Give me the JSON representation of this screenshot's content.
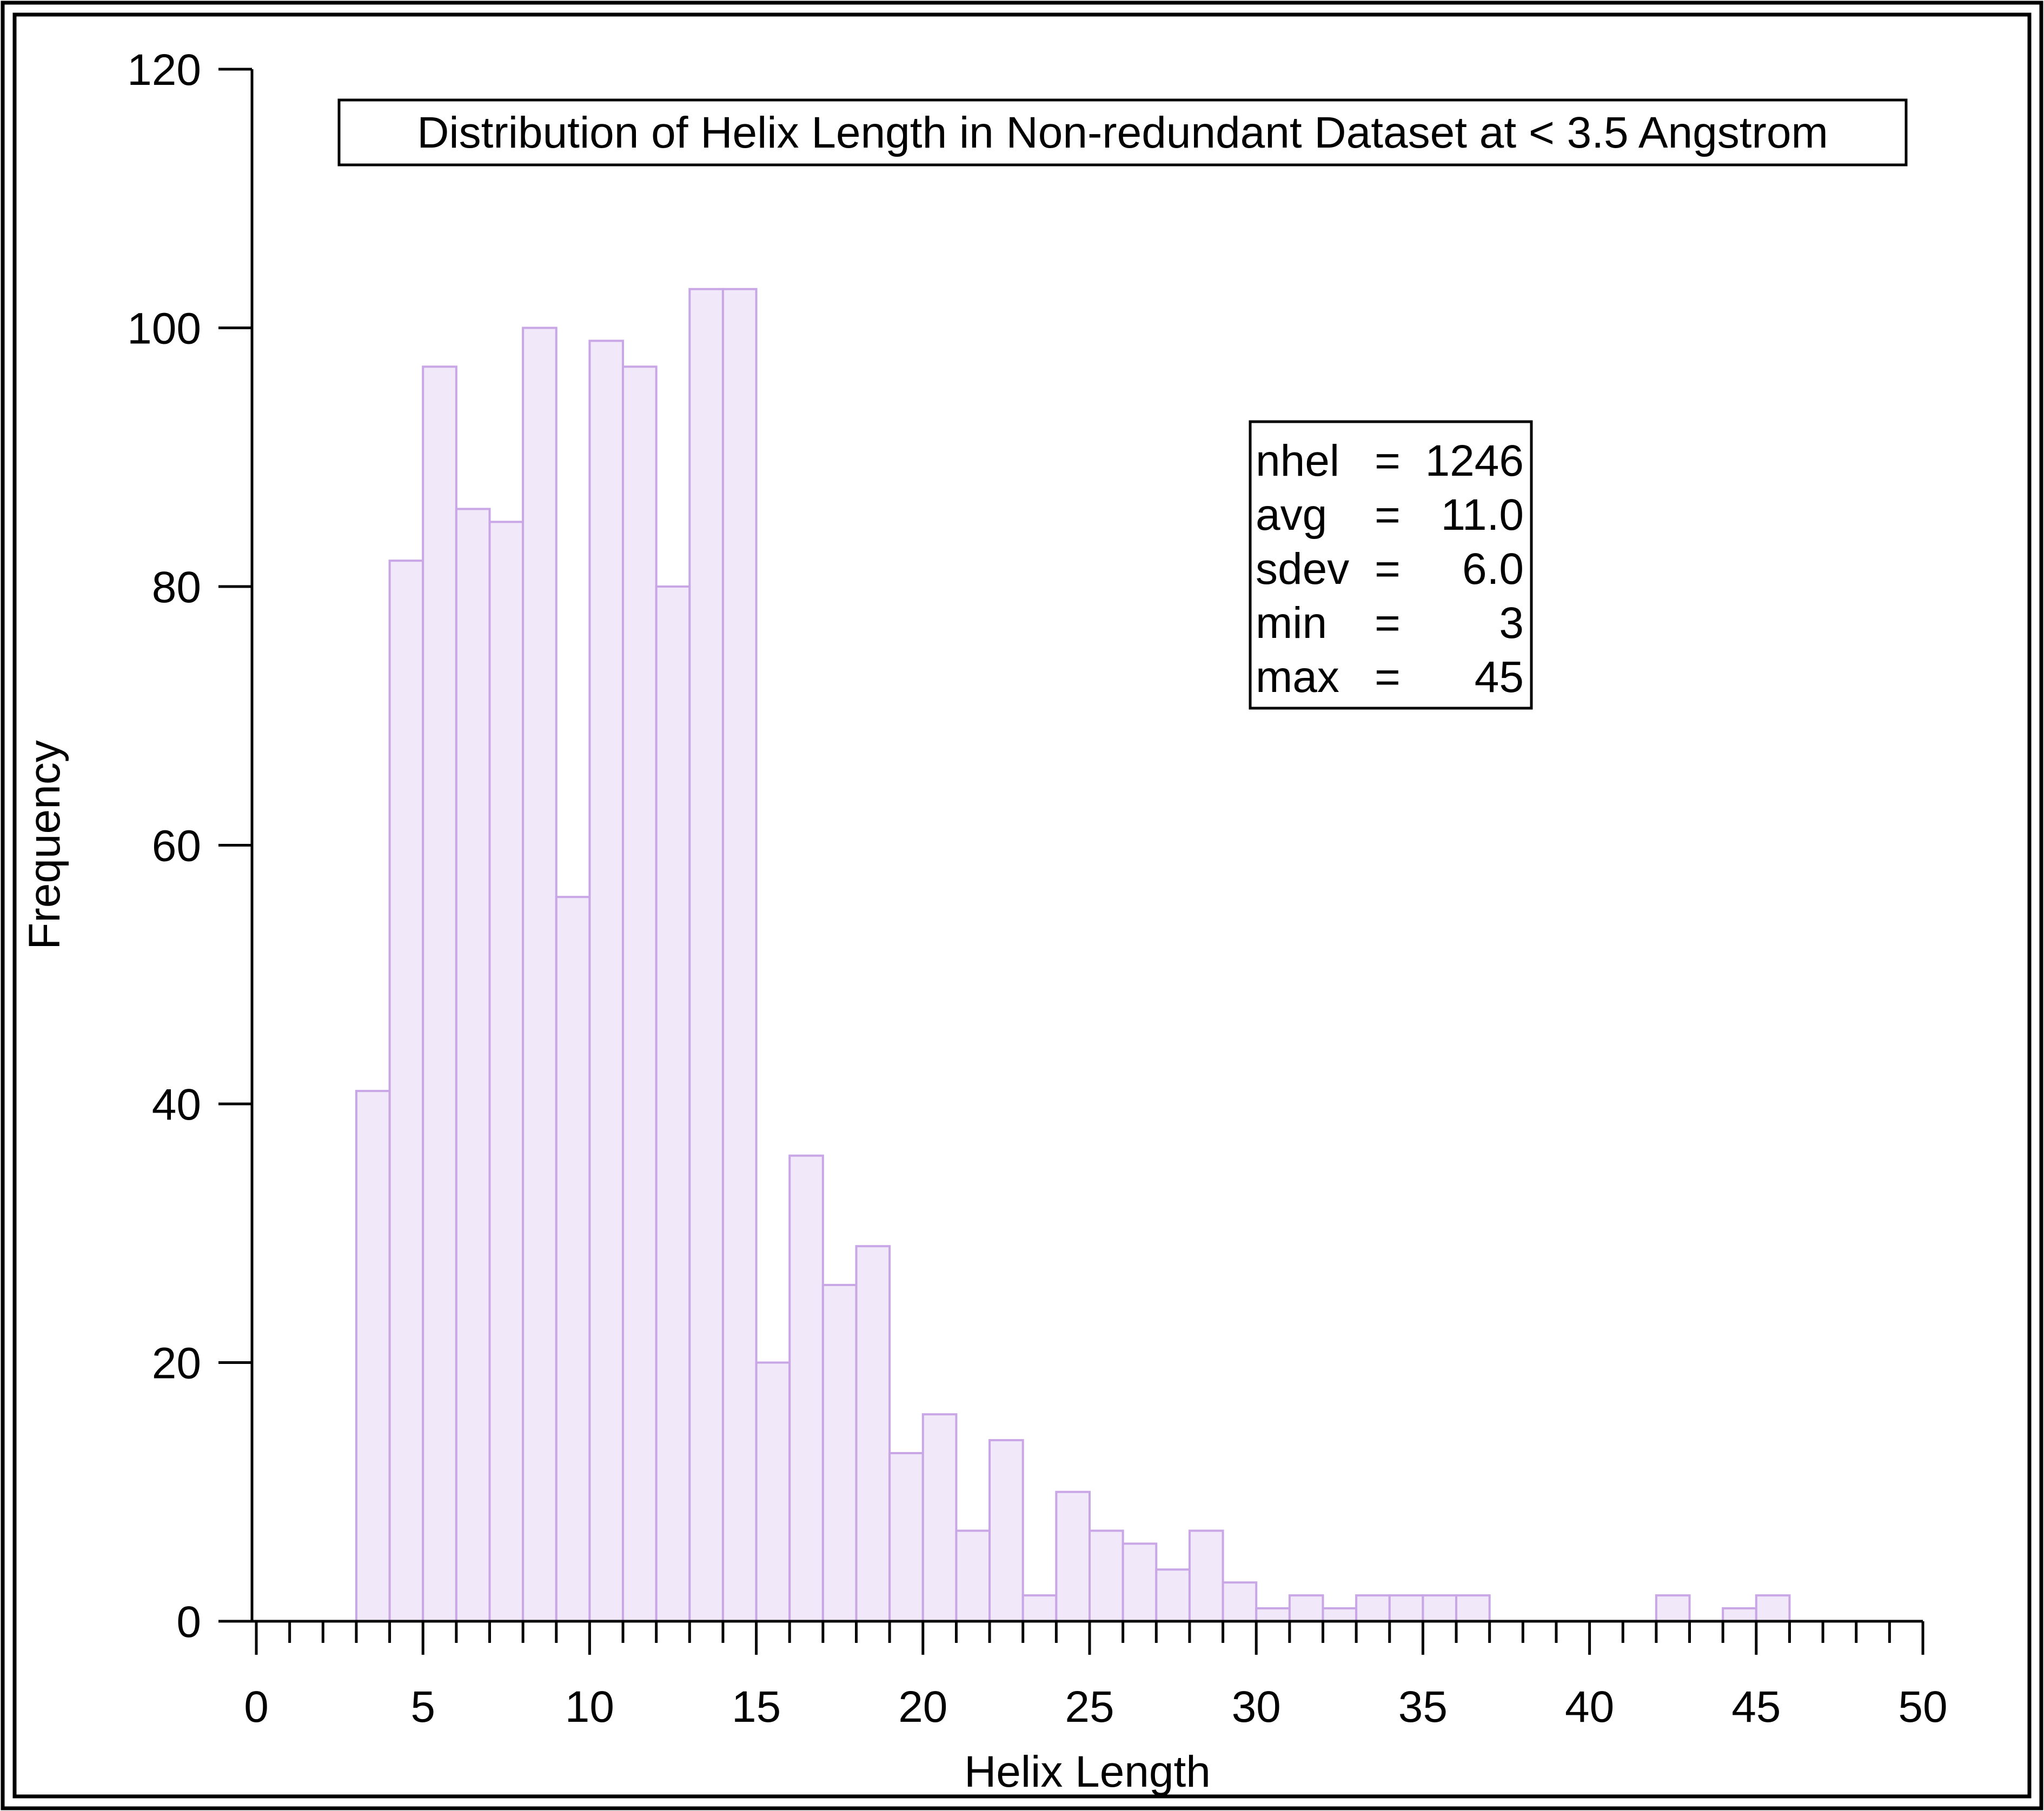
{
  "chart_data": {
    "type": "bar",
    "title": "Distribution of Helix Length in Non-redundant Dataset at < 3.5 Angstrom",
    "xlabel": "Helix Length",
    "ylabel": "Frequency",
    "xlim": [
      0,
      50
    ],
    "ylim": [
      0,
      120
    ],
    "xticks": [
      0,
      5,
      10,
      15,
      20,
      25,
      30,
      35,
      40,
      45,
      50
    ],
    "yticks": [
      0,
      20,
      40,
      60,
      80,
      100,
      120
    ],
    "grid": false,
    "bin_width": 1,
    "bins": [
      {
        "x": 0,
        "value": 0
      },
      {
        "x": 1,
        "value": 0
      },
      {
        "x": 2,
        "value": 0
      },
      {
        "x": 3,
        "value": 41
      },
      {
        "x": 4,
        "value": 82
      },
      {
        "x": 5,
        "value": 97
      },
      {
        "x": 6,
        "value": 86
      },
      {
        "x": 7,
        "value": 85
      },
      {
        "x": 8,
        "value": 100
      },
      {
        "x": 9,
        "value": 56
      },
      {
        "x": 10,
        "value": 99
      },
      {
        "x": 11,
        "value": 97
      },
      {
        "x": 12,
        "value": 80
      },
      {
        "x": 13,
        "value": 103
      },
      {
        "x": 14,
        "value": 103
      },
      {
        "x": 15,
        "value": 20
      },
      {
        "x": 16,
        "value": 36
      },
      {
        "x": 17,
        "value": 26
      },
      {
        "x": 18,
        "value": 29
      },
      {
        "x": 19,
        "value": 13
      },
      {
        "x": 20,
        "value": 16
      },
      {
        "x": 21,
        "value": 7
      },
      {
        "x": 22,
        "value": 14
      },
      {
        "x": 23,
        "value": 2
      },
      {
        "x": 24,
        "value": 10
      },
      {
        "x": 25,
        "value": 7
      },
      {
        "x": 26,
        "value": 6
      },
      {
        "x": 27,
        "value": 4
      },
      {
        "x": 28,
        "value": 7
      },
      {
        "x": 29,
        "value": 3
      },
      {
        "x": 30,
        "value": 1
      },
      {
        "x": 31,
        "value": 2
      },
      {
        "x": 32,
        "value": 1
      },
      {
        "x": 33,
        "value": 2
      },
      {
        "x": 34,
        "value": 2
      },
      {
        "x": 35,
        "value": 2
      },
      {
        "x": 36,
        "value": 2
      },
      {
        "x": 37,
        "value": 0
      },
      {
        "x": 38,
        "value": 0
      },
      {
        "x": 39,
        "value": 0
      },
      {
        "x": 40,
        "value": 0
      },
      {
        "x": 41,
        "value": 0
      },
      {
        "x": 42,
        "value": 2
      },
      {
        "x": 43,
        "value": 0
      },
      {
        "x": 44,
        "value": 1
      },
      {
        "x": 45,
        "value": 2
      },
      {
        "x": 46,
        "value": 0
      },
      {
        "x": 47,
        "value": 0
      },
      {
        "x": 48,
        "value": 0
      },
      {
        "x": 49,
        "value": 0
      }
    ],
    "colors": {
      "bar_fill": "#f1e9f9",
      "bar_stroke": "#c9a6e6"
    },
    "stats_box": [
      {
        "label": "nhel",
        "eq": "=",
        "value": "1246"
      },
      {
        "label": "avg",
        "eq": "=",
        "value": "11.0"
      },
      {
        "label": "sdev",
        "eq": "=",
        "value": "6.0"
      },
      {
        "label": "min",
        "eq": "=",
        "value": "3"
      },
      {
        "label": "max",
        "eq": "=",
        "value": "45"
      }
    ]
  }
}
